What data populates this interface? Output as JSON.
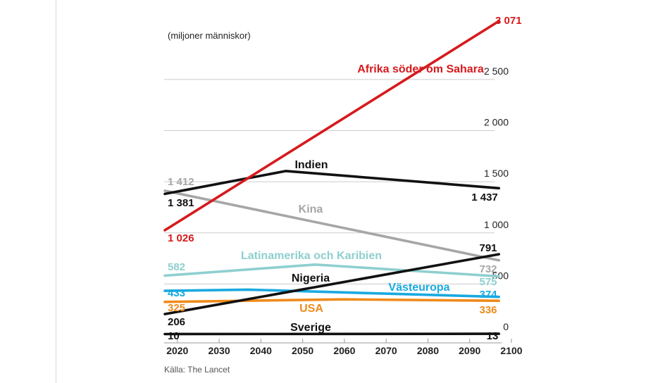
{
  "colors": {
    "africa": "#d7191c",
    "india": "#111111",
    "china": "#a6a6a6",
    "latam": "#8fcfcf",
    "nigeria": "#111111",
    "weurope": "#19a9e0",
    "usa": "#ef8a1b",
    "sweden": "#111111",
    "grid": "#cccccc",
    "text": "#222222"
  },
  "chart_data": {
    "type": "line",
    "ylabel": "(miljoner människor)",
    "x": [
      2017,
      2046,
      2053,
      2060,
      2080,
      2097
    ],
    "xlim": [
      2017,
      2100
    ],
    "ylim": [
      0,
      3071
    ],
    "grid": true,
    "yticks": [
      {
        "value": 0,
        "label": "0"
      },
      {
        "value": 500,
        "label": "500"
      },
      {
        "value": 1000,
        "label": "1 000"
      },
      {
        "value": 1500,
        "label": "1 500"
      },
      {
        "value": 2000,
        "label": "2 000"
      },
      {
        "value": 2500,
        "label": "2 500"
      }
    ],
    "xticks": [
      {
        "value": 2020,
        "label": "2020"
      },
      {
        "value": 2030,
        "label": "2030"
      },
      {
        "value": 2040,
        "label": "2040"
      },
      {
        "value": 2050,
        "label": "2050"
      },
      {
        "value": 2060,
        "label": "2060"
      },
      {
        "value": 2070,
        "label": "2070"
      },
      {
        "value": 2080,
        "label": "2080"
      },
      {
        "value": 2090,
        "label": "2090"
      },
      {
        "value": 2100,
        "label": "2100"
      }
    ],
    "series": [
      {
        "key": "africa",
        "name": "Afrika söder om Sahara",
        "start_label": "1 026",
        "end_label": "3 071",
        "points": [
          [
            2017,
            1026
          ],
          [
            2097,
            3071
          ]
        ]
      },
      {
        "key": "india",
        "name": "Indien",
        "start_label": "1 381",
        "end_label": "1 437",
        "points": [
          [
            2017,
            1381
          ],
          [
            2046,
            1605
          ],
          [
            2097,
            1437
          ]
        ]
      },
      {
        "key": "china",
        "name": "Kina",
        "start_label": "1 412",
        "end_label": "732",
        "points": [
          [
            2017,
            1412
          ],
          [
            2097,
            732
          ]
        ]
      },
      {
        "key": "latam",
        "name": "Latinamerika och Karibien",
        "start_label": "582",
        "end_label": "575",
        "points": [
          [
            2017,
            582
          ],
          [
            2053,
            690
          ],
          [
            2097,
            575
          ]
        ]
      },
      {
        "key": "nigeria",
        "name": "Nigeria",
        "start_label": "206",
        "end_label": "791",
        "points": [
          [
            2017,
            206
          ],
          [
            2097,
            791
          ]
        ]
      },
      {
        "key": "weurope",
        "name": "Västeuropa",
        "start_label": "433",
        "end_label": "374",
        "points": [
          [
            2017,
            433
          ],
          [
            2037,
            445
          ],
          [
            2097,
            374
          ]
        ]
      },
      {
        "key": "usa",
        "name": "USA",
        "start_label": "325",
        "end_label": "336",
        "points": [
          [
            2017,
            325
          ],
          [
            2060,
            350
          ],
          [
            2097,
            336
          ]
        ]
      },
      {
        "key": "sweden",
        "name": "Sverige",
        "start_label": "10",
        "end_label": "13",
        "points": [
          [
            2017,
            10
          ],
          [
            2097,
            13
          ]
        ]
      }
    ]
  },
  "source": "Källa: The Lancet"
}
